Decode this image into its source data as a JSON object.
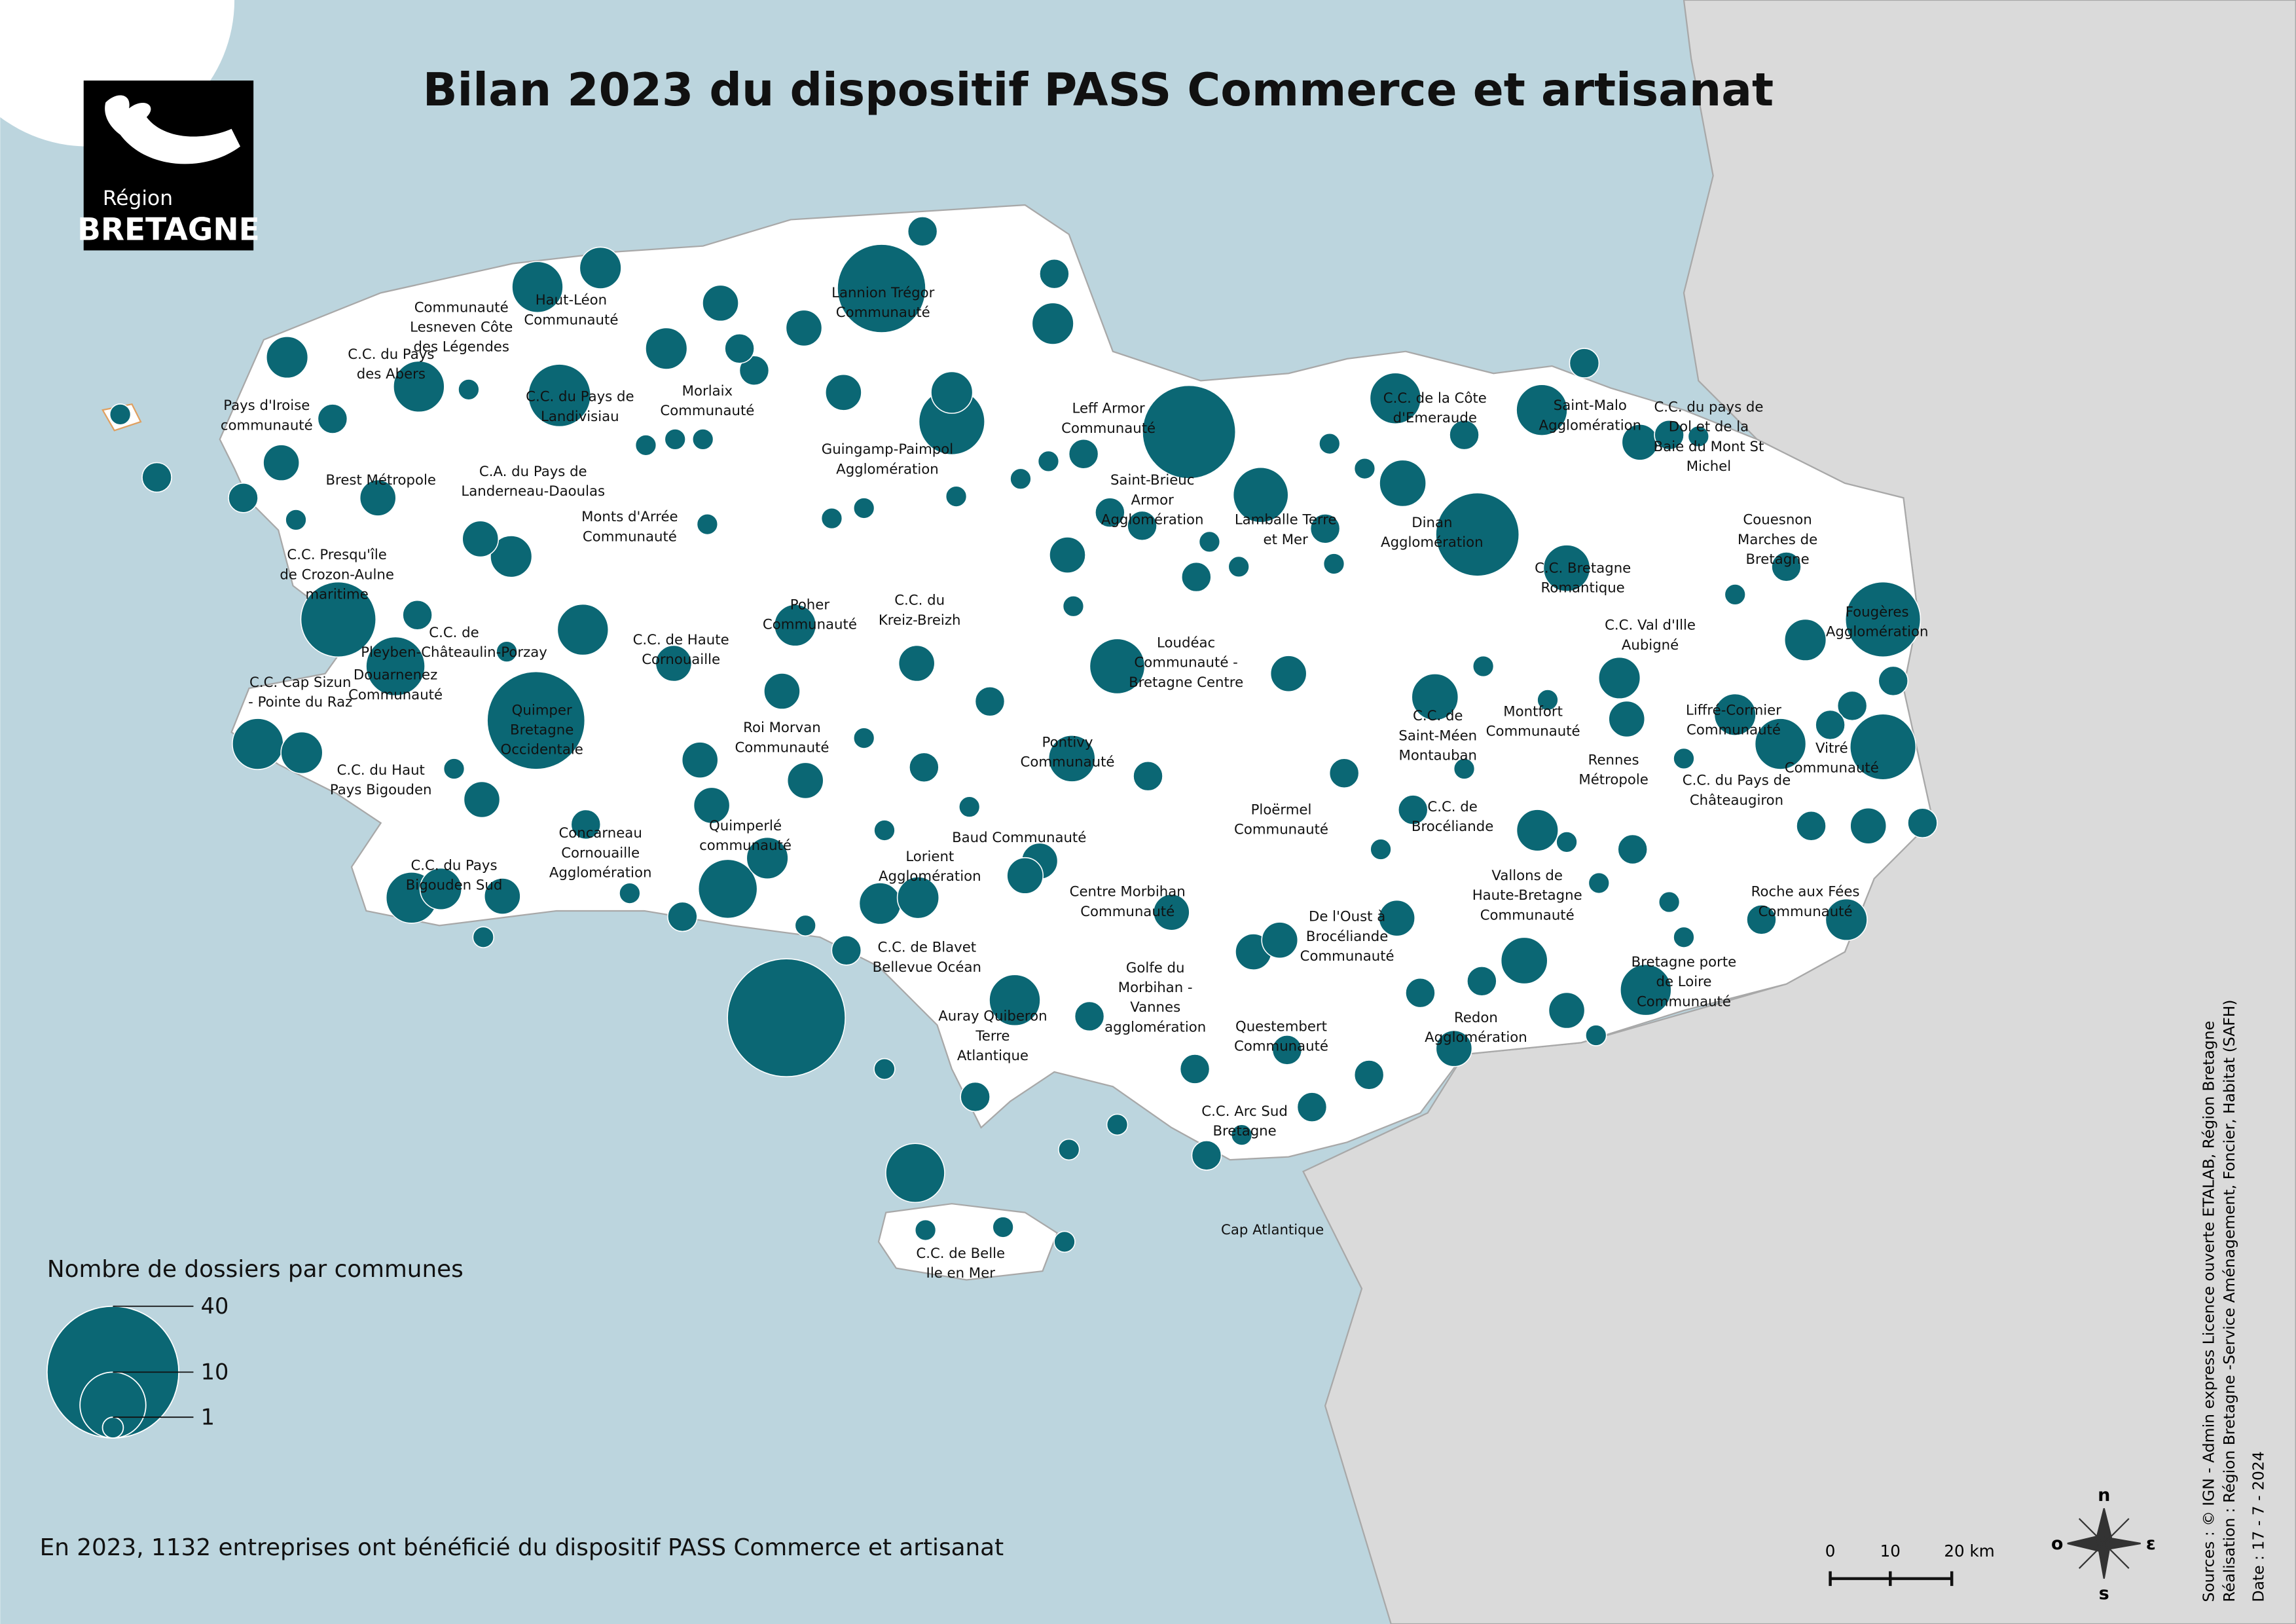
{
  "header": {
    "title": "Bilan 2023 du dispositif PASS Commerce et artisanat"
  },
  "logo": {
    "line1": "Région",
    "line2": "BRETAGNE"
  },
  "map": {
    "bubbles": [
      32,
      13,
      22,
      18,
      20,
      10,
      7,
      16,
      7,
      13,
      10,
      6,
      4,
      8,
      6,
      9,
      6,
      4,
      4,
      6,
      4,
      3,
      3,
      3,
      4,
      4,
      2,
      2,
      6,
      6,
      2,
      5,
      5,
      4,
      2,
      4,
      3,
      5,
      4,
      5,
      6,
      4,
      3,
      2,
      8,
      6,
      4,
      4,
      8,
      4,
      3,
      6,
      4,
      6,
      4,
      2,
      2,
      1,
      3,
      3,
      4,
      3,
      3,
      3,
      3,
      3,
      4,
      3,
      3,
      2,
      2,
      3,
      2,
      5,
      3,
      3,
      2,
      3,
      2,
      2,
      3,
      2,
      2,
      3,
      3,
      2,
      2,
      2,
      3,
      3,
      2,
      2,
      2,
      3,
      2,
      2,
      2,
      1,
      2,
      1,
      3,
      2,
      1,
      2,
      1,
      2,
      1,
      2,
      2,
      2,
      1,
      1,
      1,
      1,
      1,
      2,
      1,
      1,
      1,
      1,
      1,
      1,
      1,
      1,
      1,
      1,
      1,
      2,
      2,
      1,
      2,
      1,
      2,
      1,
      1,
      1,
      1,
      1,
      1,
      1,
      1,
      1,
      1,
      1,
      1,
      2,
      1,
      3,
      1,
      1,
      2,
      2,
      2,
      1,
      1,
      1,
      2,
      1,
      1,
      1
    ],
    "labels": [
      [
        "Haut-Léon",
        "Communauté"
      ],
      [
        "Communauté",
        "Lesneven Côte",
        "des Légendes"
      ],
      [
        "C.C. du Pays",
        "des Abers"
      ],
      [
        "Pays d'Iroise",
        "communauté"
      ],
      [
        "Brest Métropole"
      ],
      [
        "C.C. du Pays de",
        "Landivisiau"
      ],
      [
        "Morlaix",
        "Communauté"
      ],
      [
        "Lannion Trégor",
        "Communauté"
      ],
      [
        "Leff Armor",
        "Communauté"
      ],
      [
        "Guingamp-Paimpol",
        "Agglomération"
      ],
      [
        "C.A. du Pays de",
        "Landerneau-Daoulas"
      ],
      [
        "Monts d'Arrée",
        "Communauté"
      ],
      [
        "C.C. Presqu'île",
        "de Crozon-Aulne",
        "maritime"
      ],
      [
        "C.C. de",
        "Pleyben-Châteaulin-Porzay"
      ],
      [
        "Douarnenez",
        "Communauté"
      ],
      [
        "C.C. Cap Sizun",
        "- Pointe du Raz"
      ],
      [
        "Quimper",
        "Bretagne",
        "Occidentale"
      ],
      [
        "C.C. du Haut",
        "Pays Bigouden"
      ],
      [
        "C.C. de Haute",
        "Cornouaille"
      ],
      [
        "Poher",
        "Communauté"
      ],
      [
        "C.C. du",
        "Kreiz-Breizh"
      ],
      [
        "Roi Morvan",
        "Communauté"
      ],
      [
        "Saint-Brieuc",
        "Armor",
        "Agglomération"
      ],
      [
        "Lamballe Terre",
        "et Mer"
      ],
      [
        "Loudéac",
        "Communauté -",
        "Bretagne Centre"
      ],
      [
        "C.C. de la Côte",
        "d'Emeraude"
      ],
      [
        "Saint-Malo",
        "Agglomération"
      ],
      [
        "C.C. du pays de",
        "Dol et de la",
        "Baie du Mont St",
        "Michel"
      ],
      [
        "Dinan",
        "Agglomération"
      ],
      [
        "C.C. Bretagne",
        "Romantique"
      ],
      [
        "Couesnon",
        "Marches de",
        "Bretagne"
      ],
      [
        "Fougères",
        "Agglomération"
      ],
      [
        "C.C. Val d'Ille",
        "Aubigné"
      ],
      [
        "Liffré-Cormier",
        "Communauté"
      ],
      [
        "Montfort",
        "Communauté"
      ],
      [
        "C.C. de",
        "Saint-Méen",
        "Montauban"
      ],
      [
        "Rennes",
        "Métropole"
      ],
      [
        "C.C. du Pays de",
        "Châteaugiron"
      ],
      [
        "Vitré",
        "Communauté"
      ],
      [
        "Pontivy",
        "Communauté"
      ],
      [
        "Ploërmel",
        "Communauté"
      ],
      [
        "C.C. de",
        "Brocéliande"
      ],
      [
        "Concarneau",
        "Cornouaille",
        "Agglomération"
      ],
      [
        "Quimperlé",
        "communauté"
      ],
      [
        "Baud Communauté"
      ],
      [
        "Lorient",
        "Agglomération"
      ],
      [
        "C.C. du Pays",
        "Bigouden Sud"
      ],
      [
        "Centre Morbihan",
        "Communauté"
      ],
      [
        "De l'Oust à",
        "Brocéliande",
        "Communauté"
      ],
      [
        "Vallons de",
        "Haute-Bretagne",
        "Communauté"
      ],
      [
        "Roche aux Fées",
        "Communauté"
      ],
      [
        "C.C. de Blavet",
        "Bellevue Océan"
      ],
      [
        "Golfe du",
        "Morbihan -",
        "Vannes",
        "agglomération"
      ],
      [
        "Auray Quiberon",
        "Terre",
        "Atlantique"
      ],
      [
        "Questembert",
        "Communauté"
      ],
      [
        "Redon",
        "Agglomération"
      ],
      [
        "Bretagne porte",
        "de Loire",
        "Communauté"
      ],
      [
        "C.C. Arc Sud",
        "Bretagne"
      ],
      [
        "Cap Atlantique"
      ],
      [
        "C.C. de Belle",
        "Ile en Mer"
      ]
    ]
  },
  "legend": {
    "title": "Nombre de dossiers par communes",
    "values": [
      40,
      10,
      1
    ]
  },
  "footnote": "En 2023, 1132 entreprises ont bénéficié du dispositif PASS Commerce et artisanat",
  "scale_bar": {
    "labels": [
      "0",
      "10",
      "20 km"
    ]
  },
  "compass": {
    "n": "n",
    "o": "o",
    "e": "ε",
    "s": "s"
  },
  "sources": [
    "Sources : © IGN - Admin express Licence ouverte ETALAB, Région Bretagne",
    "Réalisation : Région Bretagne -Service Aménagement, Foncier, Habitat  (SAFH)",
    "Date : 17 - 7 - 2024"
  ]
}
